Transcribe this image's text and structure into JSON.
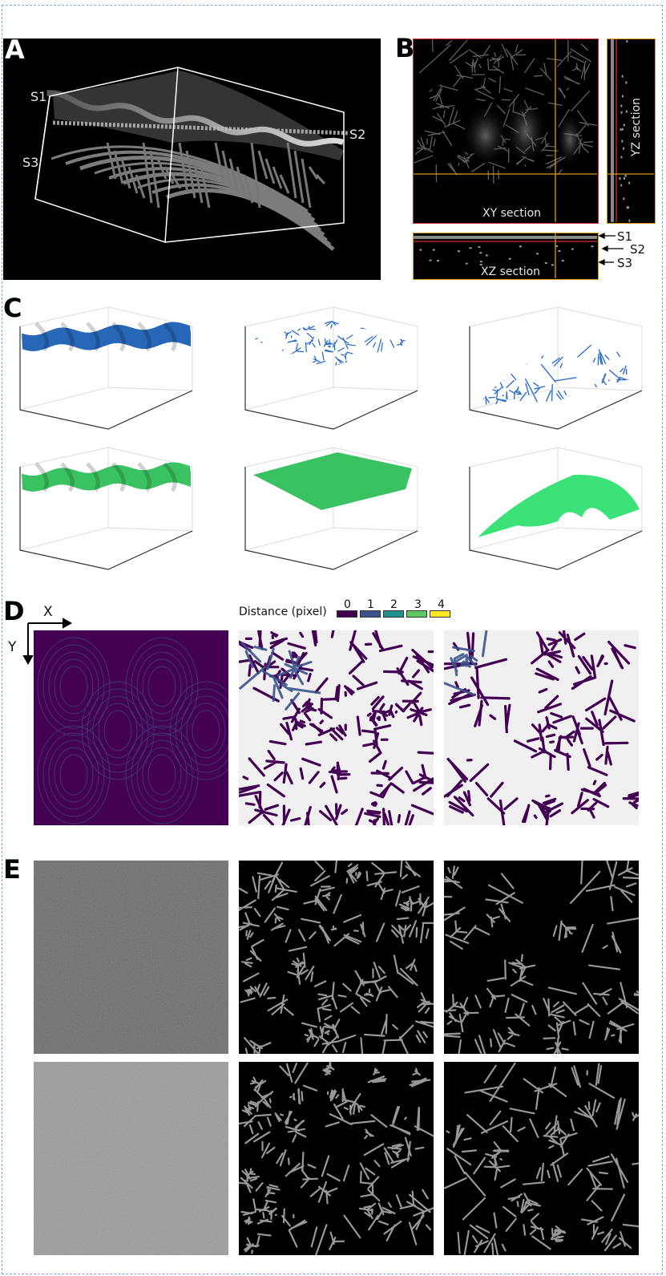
{
  "panels": {
    "A": {
      "label": "A",
      "surface_labels": [
        "S1",
        "S2",
        "S3"
      ]
    },
    "B": {
      "label": "B",
      "xy_label": "XY section",
      "yz_label": "YZ section",
      "xz_label": "XZ section",
      "arrow_labels": [
        "S1",
        "S2",
        "S3"
      ]
    },
    "C": {
      "label": "C"
    },
    "D": {
      "label": "D",
      "axis_x": "X",
      "axis_y": "Y",
      "legend_title": "Distance (pixel)",
      "legend_ticks": [
        "0",
        "1",
        "2",
        "3",
        "4"
      ],
      "legend_colors": [
        "#440154",
        "#3b528b",
        "#21918c",
        "#5ec962",
        "#fde725"
      ]
    },
    "E": {
      "label": "E"
    }
  },
  "colors": {
    "frame_red": "#d03030",
    "frame_orange": "#d89a20",
    "mesh_blue": "#2f6fc7",
    "surface_blue": "#1a5fb4",
    "surface_green": "#2fbf5a",
    "bright_green": "#30e070"
  }
}
